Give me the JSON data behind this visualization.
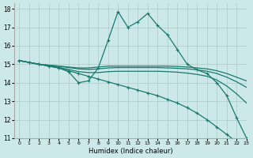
{
  "bg_color": "#cce8e8",
  "grid_color": "#aacccc",
  "line_color": "#1a7a6e",
  "xlabel": "Humidex (Indice chaleur)",
  "xlim": [
    -0.5,
    23
  ],
  "ylim": [
    11,
    18.3
  ],
  "xticks": [
    0,
    1,
    2,
    3,
    4,
    5,
    6,
    7,
    8,
    9,
    10,
    11,
    12,
    13,
    14,
    15,
    16,
    17,
    18,
    19,
    20,
    21,
    22,
    23
  ],
  "yticks": [
    11,
    12,
    13,
    14,
    15,
    16,
    17,
    18
  ],
  "lines": [
    {
      "x": [
        0,
        1,
        2,
        3,
        4,
        5,
        6,
        7,
        8,
        9,
        10,
        11,
        12,
        13,
        14,
        15,
        16,
        17,
        18,
        19,
        20,
        21,
        22,
        23
      ],
      "y": [
        15.2,
        15.1,
        15.0,
        14.9,
        14.8,
        14.6,
        14.0,
        14.1,
        14.8,
        16.3,
        17.85,
        17.0,
        17.3,
        17.75,
        17.1,
        16.6,
        15.8,
        15.0,
        14.7,
        14.5,
        14.0,
        13.3,
        12.1,
        11.0
      ],
      "marker": true
    },
    {
      "x": [
        0,
        1,
        2,
        3,
        4,
        5,
        6,
        7,
        8,
        9,
        10,
        11,
        12,
        13,
        14,
        15,
        16,
        17,
        18,
        19,
        20,
        21,
        22,
        23
      ],
      "y": [
        15.2,
        15.1,
        15.0,
        14.95,
        14.9,
        14.85,
        14.8,
        14.8,
        14.85,
        14.9,
        14.9,
        14.9,
        14.9,
        14.9,
        14.9,
        14.9,
        14.88,
        14.85,
        14.8,
        14.75,
        14.65,
        14.5,
        14.3,
        14.1
      ],
      "marker": false
    },
    {
      "x": [
        0,
        1,
        2,
        3,
        4,
        5,
        6,
        7,
        8,
        9,
        10,
        11,
        12,
        13,
        14,
        15,
        16,
        17,
        18,
        19,
        20,
        21,
        22,
        23
      ],
      "y": [
        15.2,
        15.1,
        15.0,
        14.95,
        14.9,
        14.82,
        14.75,
        14.72,
        14.75,
        14.8,
        14.82,
        14.82,
        14.82,
        14.82,
        14.82,
        14.8,
        14.78,
        14.75,
        14.7,
        14.62,
        14.5,
        14.3,
        14.05,
        13.75
      ],
      "marker": false
    },
    {
      "x": [
        0,
        1,
        2,
        3,
        4,
        5,
        6,
        7,
        8,
        9,
        10,
        11,
        12,
        13,
        14,
        15,
        16,
        17,
        18,
        19,
        20,
        21,
        22,
        23
      ],
      "y": [
        15.2,
        15.1,
        15.0,
        14.92,
        14.83,
        14.72,
        14.6,
        14.55,
        14.55,
        14.6,
        14.62,
        14.62,
        14.62,
        14.62,
        14.62,
        14.6,
        14.57,
        14.52,
        14.45,
        14.35,
        14.15,
        13.82,
        13.4,
        12.9
      ],
      "marker": false
    },
    {
      "x": [
        0,
        1,
        2,
        3,
        4,
        5,
        6,
        7,
        8,
        9,
        10,
        11,
        12,
        13,
        14,
        15,
        16,
        17,
        18,
        19,
        20,
        21,
        22,
        23
      ],
      "y": [
        15.2,
        15.1,
        15.0,
        14.9,
        14.8,
        14.65,
        14.5,
        14.35,
        14.2,
        14.05,
        13.9,
        13.75,
        13.6,
        13.45,
        13.3,
        13.1,
        12.9,
        12.65,
        12.35,
        12.0,
        11.6,
        11.2,
        10.8,
        10.5
      ],
      "marker": true
    }
  ]
}
